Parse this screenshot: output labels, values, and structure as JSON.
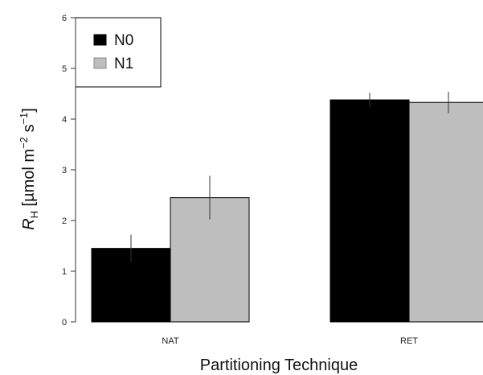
{
  "chart_data": {
    "type": "bar",
    "categories": [
      "NAT",
      "RET"
    ],
    "series": [
      {
        "name": "N0",
        "values": [
          1.45,
          4.38
        ],
        "errors": [
          0.27,
          0.14
        ],
        "color": "#000000"
      },
      {
        "name": "N1",
        "values": [
          2.45,
          4.33
        ],
        "errors": [
          0.43,
          0.21
        ],
        "color": "#bebebe"
      }
    ],
    "xlabel": "Partitioning Technique",
    "ylabel": {
      "symbol": "R",
      "subscript": "H",
      "unit_open": " [µmol m",
      "exp1": "−2",
      "unit_mid": " s",
      "exp2": "−1",
      "unit_close": "]"
    },
    "yticks": [
      0,
      1,
      2,
      3,
      4,
      5,
      6
    ],
    "ylim": [
      0,
      6
    ],
    "grid": false,
    "legend": "top-left"
  }
}
